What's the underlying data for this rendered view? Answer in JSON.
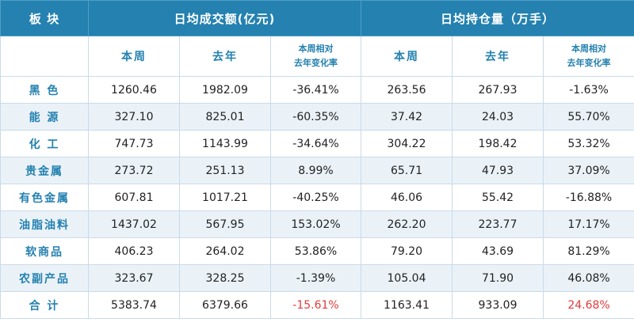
{
  "header": {
    "sector_label": "板 块",
    "volume_group": "日均成交额(亿元)",
    "oi_group": "日均持仓量（万手）",
    "this_week": "本周",
    "last_year": "去年",
    "change_line1": "本周相对",
    "change_line2": "去年变化率"
  },
  "rows": [
    {
      "sector": "黑 色",
      "vol_week": "1260.46",
      "vol_year": "1982.09",
      "vol_chg": "-36.41%",
      "oi_week": "263.56",
      "oi_year": "267.93",
      "oi_chg": "-1.63%"
    },
    {
      "sector": "能 源",
      "vol_week": "327.10",
      "vol_year": "825.01",
      "vol_chg": "-60.35%",
      "oi_week": "37.42",
      "oi_year": "24.03",
      "oi_chg": "55.70%"
    },
    {
      "sector": "化 工",
      "vol_week": "747.73",
      "vol_year": "1143.99",
      "vol_chg": "-34.64%",
      "oi_week": "304.22",
      "oi_year": "198.42",
      "oi_chg": "53.32%"
    },
    {
      "sector": "贵金属",
      "vol_week": "273.72",
      "vol_year": "251.13",
      "vol_chg": "8.99%",
      "oi_week": "65.71",
      "oi_year": "47.93",
      "oi_chg": "37.09%"
    },
    {
      "sector": "有色金属",
      "vol_week": "607.81",
      "vol_year": "1017.21",
      "vol_chg": "-40.25%",
      "oi_week": "46.06",
      "oi_year": "55.42",
      "oi_chg": "-16.88%"
    },
    {
      "sector": "油脂油料",
      "vol_week": "1437.02",
      "vol_year": "567.95",
      "vol_chg": "153.02%",
      "oi_week": "262.20",
      "oi_year": "223.77",
      "oi_chg": "17.17%"
    },
    {
      "sector": "软商品",
      "vol_week": "406.23",
      "vol_year": "264.02",
      "vol_chg": "53.86%",
      "oi_week": "79.20",
      "oi_year": "43.69",
      "oi_chg": "81.29%"
    },
    {
      "sector": "农副产品",
      "vol_week": "323.67",
      "vol_year": "328.25",
      "vol_chg": "-1.39%",
      "oi_week": "105.04",
      "oi_year": "71.90",
      "oi_chg": "46.08%"
    },
    {
      "sector": "合 计",
      "vol_week": "5383.74",
      "vol_year": "6379.66",
      "vol_chg": "-15.61%",
      "oi_week": "1163.41",
      "oi_year": "933.09",
      "oi_chg": "24.68%"
    }
  ],
  "colors": {
    "header_bg": "#2481b0",
    "accent_text": "#2481b0",
    "alt_row_bg": "#eaf2f8",
    "highlight_red": "#e23a3a"
  }
}
